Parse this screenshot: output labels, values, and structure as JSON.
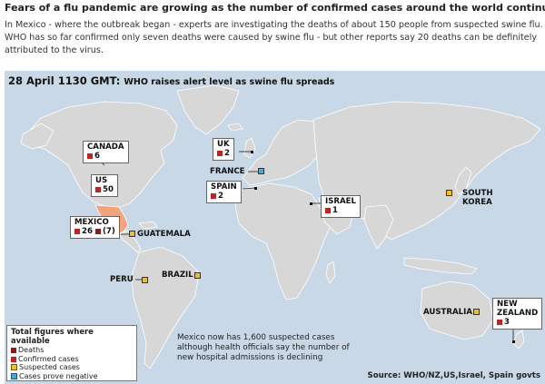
{
  "article": {
    "headline": "Fears of a flu pandemic are growing as the number of confirmed cases around the world continues to rise.",
    "body": "In Mexico - where the outbreak began - experts are investigating the deaths of about 150 people from suspected swine flu. WHO has so far confirmed only seven deaths were caused by swine flu - but other reports say 20 deaths can be definitely attributed to the virus."
  },
  "map": {
    "title_time": "28 April 1130 GMT:",
    "title_text": "WHO raises alert level as swine flu spreads",
    "colors": {
      "ocean": "#c8d8e6",
      "land": "#d7d7d7",
      "mexico_highlight": "#f2a47c",
      "deaths": "#8b1a1a",
      "confirmed": "#c82020",
      "suspected": "#f0c020",
      "negative": "#4aa8d8"
    },
    "countries": {
      "canada": {
        "name": "CANADA",
        "confirmed": "6"
      },
      "us": {
        "name": "US",
        "confirmed": "50"
      },
      "mexico": {
        "name": "MEXICO",
        "confirmed": "26",
        "deaths": "(7)"
      },
      "guatemala": {
        "name": "GUATEMALA",
        "status": "suspected"
      },
      "uk": {
        "name": "UK",
        "confirmed": "2"
      },
      "france": {
        "name": "FRANCE",
        "status": "negative"
      },
      "spain": {
        "name": "SPAIN",
        "confirmed": "2"
      },
      "israel": {
        "name": "ISRAEL",
        "confirmed": "1"
      },
      "south_korea": {
        "name_line1": "SOUTH",
        "name_line2": "KOREA",
        "status": "suspected"
      },
      "peru": {
        "name": "PERU",
        "status": "suspected"
      },
      "brazil": {
        "name": "BRAZIL",
        "status": "suspected"
      },
      "australia": {
        "name": "AUSTRALIA",
        "status": "suspected"
      },
      "new_zealand": {
        "name_line1": "NEW",
        "name_line2": "ZEALAND",
        "confirmed": "3"
      }
    },
    "legend": {
      "title": "Total figures where available",
      "deaths": "Deaths",
      "confirmed": "Confirmed cases",
      "suspected": "Suspected cases",
      "negative": "Cases prove negative"
    },
    "note": "Mexico now has 1,600 suspected cases although health officials say the number of new hospital admissions is declining",
    "source": "Source: WHO/NZ,US,Israel, Spain govts"
  }
}
